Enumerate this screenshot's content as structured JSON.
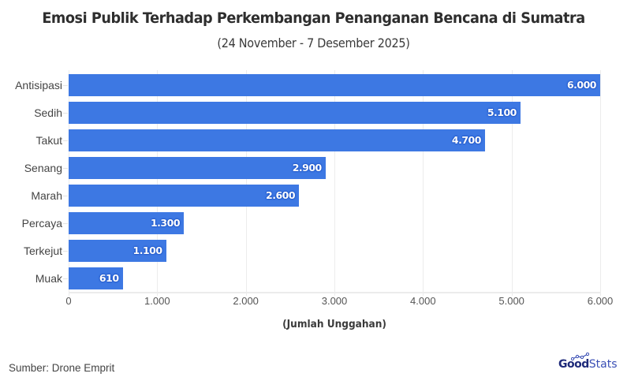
{
  "header": {
    "title": "Emosi Publik Terhadap Perkembangan Penanganan Bencana di Sumatra",
    "subtitle": "(24 November - 7 Desember 2025)"
  },
  "footer": {
    "source": "Sumber: Drone Emprit",
    "logo_part1": "Good",
    "logo_part2": "Stats"
  },
  "colors": {
    "bar": "#3d78e3",
    "label_outline": "#1a4fc0",
    "grid": "#ececec"
  },
  "chart_data": {
    "type": "bar",
    "orientation": "horizontal",
    "title": "Emosi Publik Terhadap Perkembangan Penanganan Bencana di Sumatra",
    "subtitle": "(24 November - 7 Desember 2025)",
    "xlabel": "(Jumlah Unggahan)",
    "ylabel": "",
    "categories": [
      "Antisipasi",
      "Sedih",
      "Takut",
      "Senang",
      "Marah",
      "Percaya",
      "Terkejut",
      "Muak"
    ],
    "values": [
      6000,
      5100,
      4700,
      2900,
      2600,
      1300,
      1100,
      610
    ],
    "value_labels": [
      "6.000",
      "5.100",
      "4.700",
      "2.900",
      "2.600",
      "1.300",
      "1.100",
      "610"
    ],
    "xlim": [
      0,
      6000
    ],
    "xticks": [
      0,
      1000,
      2000,
      3000,
      4000,
      5000,
      6000
    ],
    "xtick_labels": [
      "0",
      "1.000",
      "2.000",
      "3.000",
      "4.000",
      "5.000",
      "6.000"
    ],
    "grid": "vertical",
    "legend": null,
    "source": "Sumber: Drone Emprit"
  }
}
